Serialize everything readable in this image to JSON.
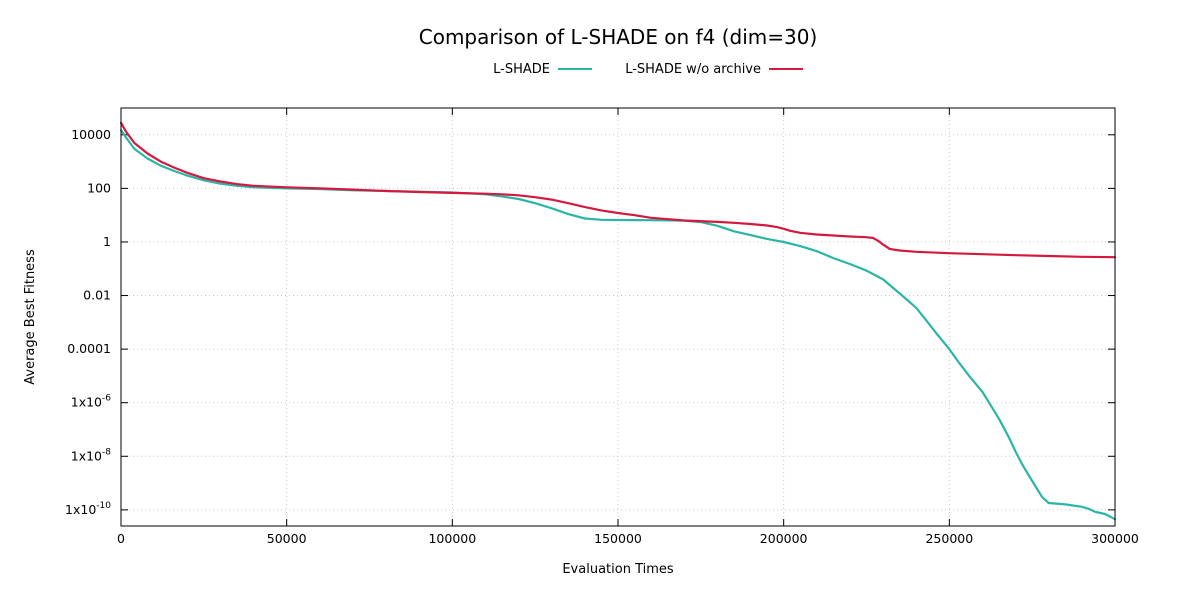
{
  "chart_data": {
    "type": "line",
    "title": "Comparison of L-SHADE on f4 (dim=30)",
    "xlabel": "Evaluation Times",
    "ylabel": "Average Best Fitness",
    "xlim": [
      0,
      300000
    ],
    "ylim": [
      2.5e-11,
      100000.0
    ],
    "yscale": "log",
    "grid": true,
    "legend_position": "top-center",
    "x_ticks": [
      {
        "value": 0,
        "label": "0"
      },
      {
        "value": 50000,
        "label": "50000"
      },
      {
        "value": 100000,
        "label": "100000"
      },
      {
        "value": 150000,
        "label": "150000"
      },
      {
        "value": 200000,
        "label": "200000"
      },
      {
        "value": 250000,
        "label": "250000"
      },
      {
        "value": 300000,
        "label": "300000"
      }
    ],
    "y_ticks": [
      {
        "value": 10000,
        "base": "10000",
        "exp": ""
      },
      {
        "value": 100,
        "base": "100",
        "exp": ""
      },
      {
        "value": 1,
        "base": "1",
        "exp": ""
      },
      {
        "value": 0.01,
        "base": "0.01",
        "exp": ""
      },
      {
        "value": 0.0001,
        "base": "0.0001",
        "exp": ""
      },
      {
        "value": 1e-06,
        "base": "1x10",
        "exp": "-6"
      },
      {
        "value": 1e-08,
        "base": "1x10",
        "exp": "-8"
      },
      {
        "value": 1e-10,
        "base": "1x10",
        "exp": "-10"
      }
    ],
    "series": [
      {
        "name": "L-SHADE",
        "color": "#2ab5a5",
        "x": [
          0,
          1500,
          4000,
          8000,
          12000,
          16000,
          20000,
          25000,
          30000,
          35000,
          40000,
          50000,
          60000,
          70000,
          80000,
          90000,
          100000,
          110000,
          115000,
          120000,
          125000,
          130000,
          135000,
          140000,
          145000,
          150000,
          160000,
          170000,
          175000,
          180000,
          185000,
          190000,
          195000,
          200000,
          205000,
          210000,
          215000,
          220000,
          225000,
          230000,
          235000,
          240000,
          243000,
          246000,
          250000,
          253000,
          256000,
          260000,
          262000,
          265000,
          268000,
          270000,
          272000,
          275000,
          278000,
          280000,
          285000,
          290000,
          292000,
          294000,
          297000,
          300000
        ],
        "y": [
          15000,
          8000,
          3000,
          1300,
          700,
          450,
          300,
          200,
          150,
          125,
          110,
          100,
          95,
          85,
          80,
          75,
          70,
          60,
          50,
          40,
          28,
          18,
          11,
          7.5,
          6.7,
          6.6,
          6.5,
          6.2,
          5.5,
          4,
          2.5,
          1.8,
          1.3,
          1,
          0.7,
          0.45,
          0.25,
          0.15,
          0.085,
          0.04,
          0.012,
          0.0035,
          0.0012,
          0.0004,
          0.0001,
          3e-05,
          1e-05,
          2.5e-06,
          1e-06,
          2.5e-07,
          5e-08,
          1.5e-08,
          5e-09,
          1.2e-09,
          3e-10,
          1.8e-10,
          1.6e-10,
          1.3e-10,
          1.1e-10,
          8.5e-11,
          7e-11,
          4.5e-11
        ]
      },
      {
        "name": "L-SHADE w/o archive",
        "color": "#d4193f",
        "x": [
          0,
          1500,
          4000,
          8000,
          12000,
          16000,
          20000,
          25000,
          30000,
          35000,
          40000,
          50000,
          60000,
          70000,
          80000,
          90000,
          100000,
          110000,
          115000,
          120000,
          125000,
          130000,
          135000,
          140000,
          145000,
          150000,
          155000,
          160000,
          170000,
          180000,
          185000,
          190000,
          195000,
          198000,
          200000,
          202000,
          205000,
          210000,
          220000,
          225000,
          227000,
          228500,
          230000,
          232000,
          235000,
          240000,
          250000,
          260000,
          270000,
          280000,
          290000,
          300000
        ],
        "y": [
          28000,
          13000,
          5000,
          2000,
          1000,
          600,
          380,
          240,
          180,
          145,
          125,
          110,
          100,
          90,
          80,
          73,
          68,
          63,
          60,
          55,
          47,
          38,
          28,
          20,
          15,
          12,
          10,
          8,
          6.3,
          5.6,
          5.2,
          4.7,
          4.1,
          3.6,
          3.1,
          2.6,
          2.2,
          1.9,
          1.6,
          1.5,
          1.4,
          1.1,
          0.8,
          0.55,
          0.48,
          0.43,
          0.38,
          0.35,
          0.32,
          0.3,
          0.28,
          0.27
        ]
      }
    ]
  }
}
